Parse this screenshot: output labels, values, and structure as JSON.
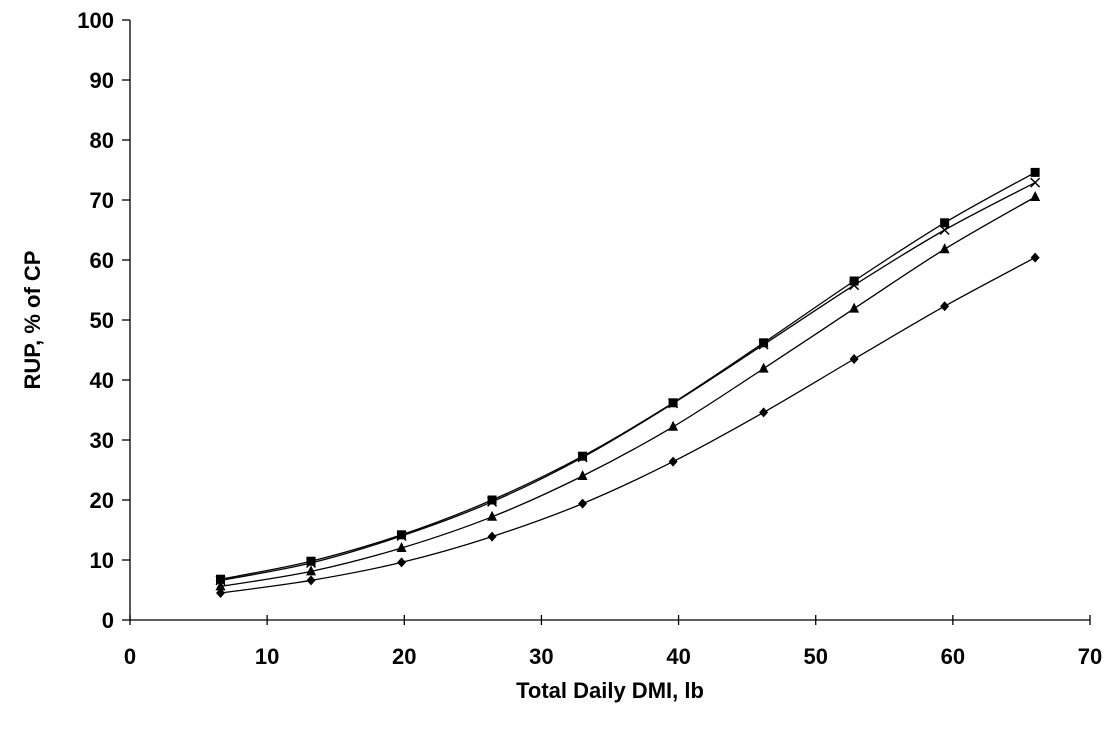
{
  "chart_data": {
    "type": "line",
    "title": "",
    "xlabel": "Total Daily DMI, lb",
    "ylabel": "RUP, % of CP",
    "xlim": [
      0,
      70
    ],
    "ylim": [
      0,
      100
    ],
    "xticks": [
      0,
      10,
      20,
      30,
      40,
      50,
      60,
      70
    ],
    "yticks": [
      0,
      10,
      20,
      30,
      40,
      50,
      60,
      70,
      80,
      90,
      100
    ],
    "grid": false,
    "legend": "none",
    "x": [
      6.6,
      13.2,
      19.8,
      26.4,
      33.0,
      39.6,
      46.2,
      52.8,
      59.4,
      66.0
    ],
    "series": [
      {
        "marker": "diamond",
        "color": "#000000",
        "values": [
          4.5,
          6.6,
          9.6,
          13.9,
          19.4,
          26.4,
          34.6,
          43.5,
          52.3,
          60.4
        ]
      },
      {
        "marker": "triangle",
        "color": "#000000",
        "values": [
          5.6,
          8.1,
          12.0,
          17.2,
          24.0,
          32.2,
          41.9,
          51.9,
          61.8,
          70.5
        ]
      },
      {
        "marker": "x",
        "color": "#000000",
        "values": [
          6.6,
          9.5,
          14.0,
          19.7,
          27.1,
          36.1,
          45.9,
          55.8,
          65.0,
          72.9
        ]
      },
      {
        "marker": "square",
        "color": "#000000",
        "values": [
          6.8,
          9.8,
          14.2,
          20.0,
          27.3,
          36.2,
          46.2,
          56.5,
          66.2,
          74.6
        ]
      }
    ]
  }
}
